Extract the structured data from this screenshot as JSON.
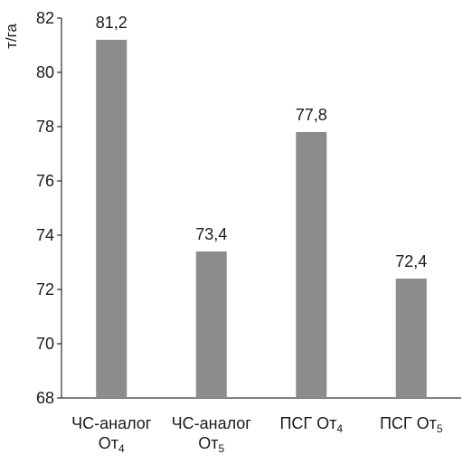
{
  "chart_data": {
    "type": "bar",
    "ylabel": "т/га",
    "ylim": [
      68,
      82
    ],
    "yticks": [
      68,
      70,
      72,
      74,
      76,
      78,
      80,
      82
    ],
    "grid": false,
    "bar_color": "#8c8c8c",
    "categories": [
      {
        "main": "ЧС-аналог",
        "line2": "От",
        "sub": "4"
      },
      {
        "main": "ЧС-аналог",
        "line2": "От",
        "sub": "5"
      },
      {
        "main": "ПСГ От",
        "line2": "",
        "sub": "4"
      },
      {
        "main": "ПСГ От",
        "line2": "",
        "sub": "5"
      }
    ],
    "values": [
      81.2,
      73.4,
      77.8,
      72.4
    ],
    "data_labels": [
      "81,2",
      "73,4",
      "77,8",
      "72,4"
    ]
  }
}
